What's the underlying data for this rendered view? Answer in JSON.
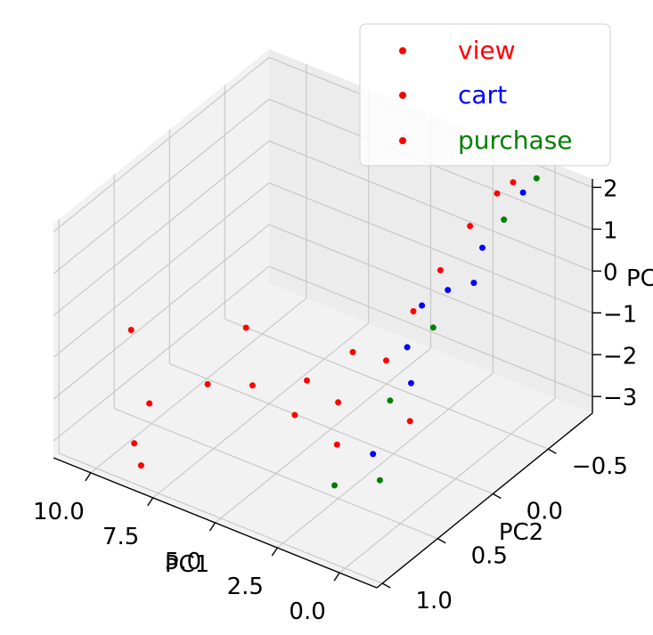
{
  "chart_data": {
    "type": "scatter",
    "projection": "3d",
    "xlabel": "PC1",
    "ylabel": "PC2",
    "zlabel": "PC",
    "xlim": [
      -1.5,
      11.5
    ],
    "ylim": [
      -0.9,
      1.05
    ],
    "zlim": [
      -3.4,
      2.2
    ],
    "x_ticks": [
      10.0,
      7.5,
      5.0,
      2.5,
      0.0
    ],
    "x_tick_labels": [
      "10.0",
      "7.5",
      "5.0",
      "2.5",
      "0.0"
    ],
    "y_ticks": [
      -0.5,
      0.0,
      0.5,
      1.0
    ],
    "y_tick_labels": [
      "−0.5",
      "0.0",
      "0.5",
      "1.0"
    ],
    "z_ticks": [
      2,
      1,
      0,
      -1,
      -2,
      -3
    ],
    "z_tick_labels": [
      "2",
      "1",
      "0",
      "−1",
      "−2",
      "−3"
    ],
    "grid": true,
    "legend_position": "top-right",
    "legend_marker_color": "#ff0000",
    "series": [
      {
        "name": "view",
        "color": "#ff0000",
        "points": [
          [
            10.6,
            0.55,
            -1.2
          ],
          [
            9.2,
            0.7,
            -2.3
          ],
          [
            8.7,
            0.95,
            -2.6
          ],
          [
            7.3,
            0.6,
            -1.6
          ],
          [
            6.2,
            0.5,
            -0.2
          ],
          [
            5.5,
            0.6,
            -1.2
          ],
          [
            4.2,
            0.4,
            -1.2
          ],
          [
            3.8,
            0.6,
            -1.5
          ],
          [
            8.2,
            1.0,
            -2.9
          ],
          [
            2.8,
            0.3,
            -0.4
          ],
          [
            2.5,
            0.5,
            -1.1
          ],
          [
            2.1,
            0.6,
            -1.8
          ],
          [
            1.9,
            0.2,
            -0.6
          ],
          [
            1.7,
            0.0,
            0.2
          ],
          [
            1.5,
            -0.2,
            0.8
          ],
          [
            1.2,
            -0.4,
            1.5
          ],
          [
            1.0,
            -0.6,
            1.9
          ],
          [
            0.8,
            -0.7,
            2.0
          ],
          [
            0.5,
            0.3,
            -1.5
          ]
        ]
      },
      {
        "name": "cart",
        "color": "#0000ff",
        "points": [
          [
            0.4,
            -0.7,
            1.85
          ],
          [
            0.7,
            -0.4,
            1.1
          ],
          [
            1.2,
            -0.2,
            0.4
          ],
          [
            1.5,
            0.1,
            -0.4
          ],
          [
            0.9,
            0.2,
            -0.9
          ],
          [
            1.1,
            0.5,
            -2.0
          ],
          [
            0.6,
            -0.3,
            0.5
          ],
          [
            1.8,
            -0.1,
            0.1
          ]
        ]
      },
      {
        "name": "purchase",
        "color": "#008000",
        "points": [
          [
            0.3,
            -0.8,
            2.0
          ],
          [
            0.5,
            -0.55,
            1.5
          ],
          [
            0.9,
            0.0,
            0.0
          ],
          [
            1.3,
            0.3,
            -1.2
          ],
          [
            0.6,
            0.55,
            -2.4
          ],
          [
            2.2,
            0.6,
            -2.8
          ]
        ]
      }
    ]
  }
}
